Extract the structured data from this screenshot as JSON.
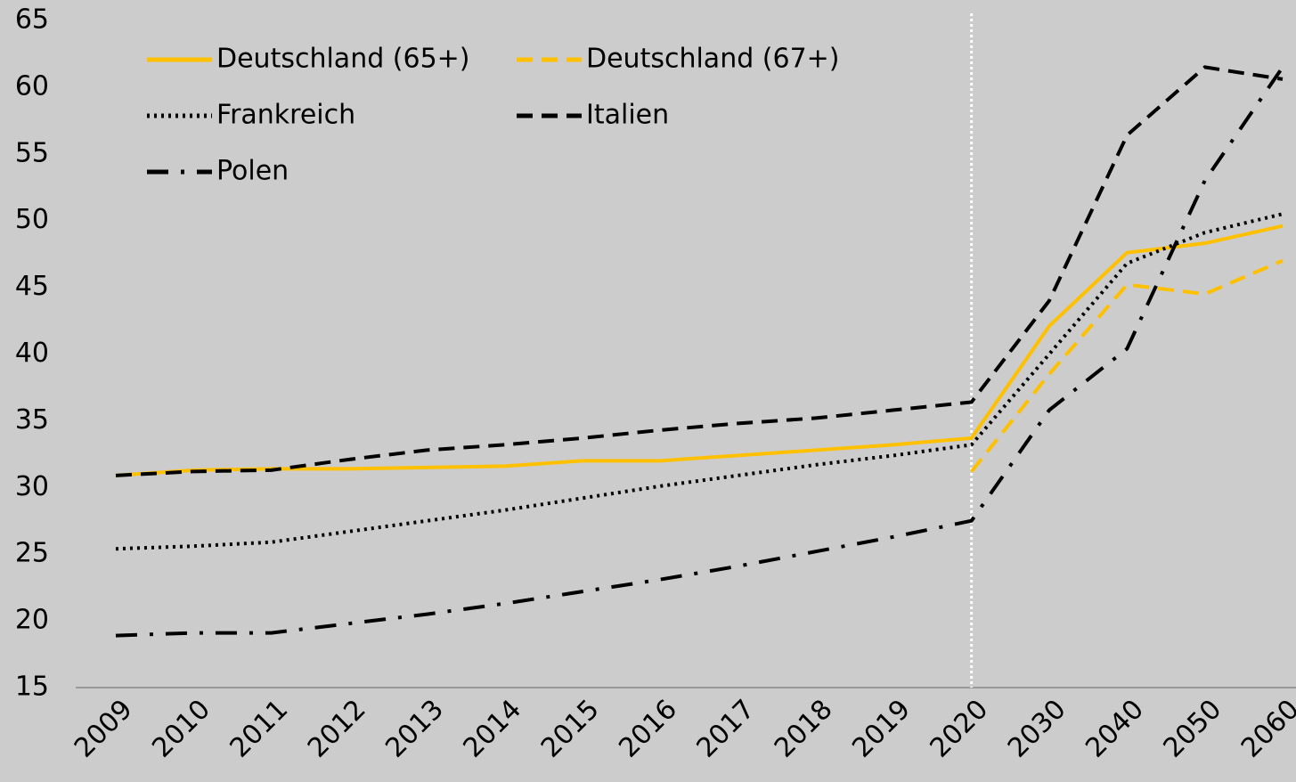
{
  "chart_data": {
    "type": "line",
    "categories": [
      "2009",
      "2010",
      "2011",
      "2012",
      "2013",
      "2014",
      "2015",
      "2016",
      "2017",
      "2018",
      "2019",
      "2020",
      "2030",
      "2040",
      "2050",
      "2060"
    ],
    "series": [
      {
        "name": "Deutschland (65+)",
        "color": "#ffc000",
        "dash": "solid",
        "values": [
          30.9,
          31.3,
          31.4,
          31.4,
          31.5,
          31.6,
          32.0,
          32.0,
          32.4,
          32.8,
          33.2,
          33.7,
          42.1,
          47.6,
          48.3,
          49.6
        ]
      },
      {
        "name": "Deutschland (67+)",
        "color": "#ffc000",
        "dash": "dashed",
        "values": [
          null,
          null,
          null,
          null,
          null,
          null,
          null,
          null,
          null,
          null,
          null,
          31.2,
          38.5,
          45.2,
          44.5,
          47.0
        ]
      },
      {
        "name": "Frankreich",
        "color": "#000000",
        "dash": "dotted",
        "values": [
          25.4,
          25.6,
          25.9,
          26.7,
          27.5,
          28.3,
          29.2,
          30.1,
          30.9,
          31.7,
          32.4,
          33.2,
          40.0,
          46.8,
          49.1,
          50.5
        ]
      },
      {
        "name": "Italien",
        "color": "#000000",
        "dash": "dashed",
        "values": [
          30.9,
          31.2,
          31.3,
          32.1,
          32.8,
          33.2,
          33.7,
          34.3,
          34.8,
          35.2,
          35.8,
          36.4,
          44.0,
          56.4,
          61.5,
          60.6
        ]
      },
      {
        "name": "Polen",
        "color": "#000000",
        "dash": "dashdot",
        "values": [
          18.9,
          19.1,
          19.1,
          19.8,
          20.5,
          21.3,
          22.2,
          23.1,
          24.1,
          25.2,
          26.3,
          27.5,
          35.8,
          40.4,
          53.0,
          61.5
        ]
      }
    ],
    "ylim": [
      15,
      65
    ],
    "yticks": [
      15,
      20,
      25,
      30,
      35,
      40,
      45,
      50,
      55,
      60,
      65
    ],
    "vline": "2020",
    "grid": false,
    "legend": "top-left"
  }
}
